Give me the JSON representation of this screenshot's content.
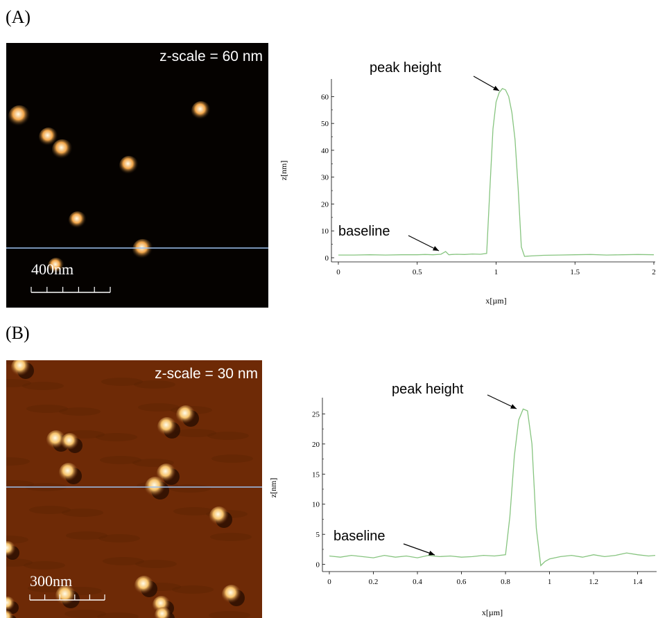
{
  "panels": [
    {
      "label": "(A)",
      "image": {
        "z_scale_label": "z-scale = 60 nm",
        "scale_bar_label": "400nm",
        "background_color": "#050200",
        "particle_color": "#f2a64a",
        "scan_line_color": "#9ec3f2",
        "particle_count": 8
      },
      "chart_data": {
        "type": "line",
        "xlabel": "x[µm]",
        "ylabel": "z[nm]",
        "xlim": [
          0,
          2
        ],
        "ylim": [
          0,
          65
        ],
        "xticks": [
          0,
          0.5,
          1,
          1.5,
          2
        ],
        "yticks": [
          0,
          10,
          20,
          30,
          40,
          50,
          60
        ],
        "line_color": "#86c47f",
        "annotations": [
          {
            "text": "peak height",
            "x": 1.05,
            "y": 63
          },
          {
            "text": "baseline",
            "x": 0.62,
            "y": 1
          }
        ],
        "x": [
          0,
          0.1,
          0.2,
          0.3,
          0.4,
          0.5,
          0.55,
          0.6,
          0.65,
          0.68,
          0.7,
          0.72,
          0.75,
          0.8,
          0.85,
          0.9,
          0.94,
          0.96,
          0.98,
          1.0,
          1.02,
          1.04,
          1.06,
          1.08,
          1.1,
          1.12,
          1.14,
          1.16,
          1.18,
          1.2,
          1.3,
          1.4,
          1.5,
          1.6,
          1.7,
          1.8,
          1.9,
          2.0
        ],
        "y": [
          1,
          1,
          1.1,
          1,
          1.1,
          1.1,
          1.2,
          1.1,
          1.3,
          2.3,
          1.1,
          1.2,
          1.3,
          1.2,
          1.4,
          1.3,
          1.6,
          25,
          48,
          58,
          61.5,
          63,
          62.5,
          60,
          54,
          44,
          26,
          4,
          0.5,
          0.6,
          0.9,
          1,
          1.1,
          1.2,
          1,
          1.1,
          1.2,
          1.1
        ]
      }
    },
    {
      "label": "(B)",
      "image": {
        "z_scale_label": "z-scale = 30 nm",
        "scale_bar_label": "300nm",
        "background_color": "#6e2a06",
        "particle_color": "#f6c36c",
        "scan_line_color": "#9ec3f2",
        "particle_count": 17
      },
      "chart_data": {
        "type": "line",
        "xlabel": "x[µm]",
        "ylabel": "z[nm]",
        "xlim": [
          0,
          1.48
        ],
        "ylim": [
          -0.5,
          27
        ],
        "xticks": [
          0,
          0.2,
          0.4,
          0.6,
          0.8,
          1,
          1.2,
          1.4
        ],
        "yticks": [
          0,
          5,
          10,
          15,
          20,
          25
        ],
        "line_color": "#86c47f",
        "annotations": [
          {
            "text": "peak height",
            "x": 0.87,
            "y": 25.8
          },
          {
            "text": "baseline",
            "x": 0.47,
            "y": 1.2
          }
        ],
        "x": [
          0,
          0.05,
          0.1,
          0.15,
          0.2,
          0.25,
          0.3,
          0.35,
          0.4,
          0.45,
          0.5,
          0.55,
          0.6,
          0.65,
          0.7,
          0.75,
          0.8,
          0.82,
          0.84,
          0.86,
          0.88,
          0.9,
          0.92,
          0.94,
          0.96,
          0.98,
          1.0,
          1.05,
          1.1,
          1.15,
          1.2,
          1.25,
          1.3,
          1.35,
          1.4,
          1.45,
          1.48
        ],
        "y": [
          1.4,
          1.2,
          1.5,
          1.3,
          1.1,
          1.5,
          1.2,
          1.4,
          1.1,
          1.5,
          1.3,
          1.4,
          1.2,
          1.3,
          1.5,
          1.4,
          1.6,
          8,
          18,
          24,
          25.8,
          25.5,
          20,
          6,
          -0.2,
          0.5,
          0.9,
          1.3,
          1.5,
          1.2,
          1.6,
          1.3,
          1.5,
          1.9,
          1.6,
          1.4,
          1.5
        ]
      }
    }
  ]
}
